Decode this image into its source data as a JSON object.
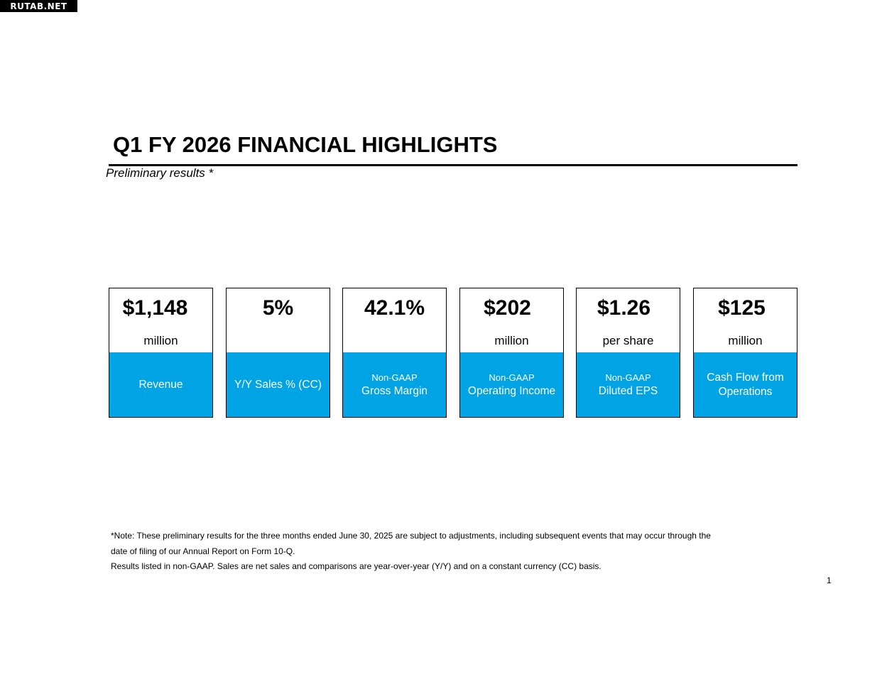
{
  "watermark": "RUTAB.NET",
  "title": "Q1 FY 2026 FINANCIAL HIGHLIGHTS",
  "subtitle": "Preliminary results *",
  "cards": [
    {
      "value": "$1,148",
      "unit": "million",
      "small_label": "",
      "label": "Revenue"
    },
    {
      "value": "5%",
      "unit": "",
      "small_label": "",
      "label": "Y/Y Sales % (CC)"
    },
    {
      "value": "42.1%",
      "unit": "",
      "small_label": "Non-GAAP",
      "label": "Gross Margin"
    },
    {
      "value": "$202",
      "unit": "million",
      "small_label": "Non-GAAP",
      "label": "Operating Income"
    },
    {
      "value": "$1.26",
      "unit": "per share",
      "small_label": "Non-GAAP",
      "label": "Diluted EPS"
    },
    {
      "value": "$125",
      "unit": "million",
      "small_label": "Cash Flow from",
      "label": "Operations"
    }
  ],
  "note": {
    "line1": "*Note: These preliminary results for the three months ended June 30, 2025 are subject to adjustments, including subsequent events that may occur through the",
    "line2": "date of filing of our Annual Report on Form 10-Q.",
    "line3": "Results listed in non-GAAP. Sales are net sales and comparisons are year-over-year (Y/Y) and on a constant currency (CC) basis."
  },
  "page_number": "1",
  "colors": {
    "card_accent": "#00a3e4",
    "text": "#000000",
    "card_label_text": "#ffffff"
  }
}
